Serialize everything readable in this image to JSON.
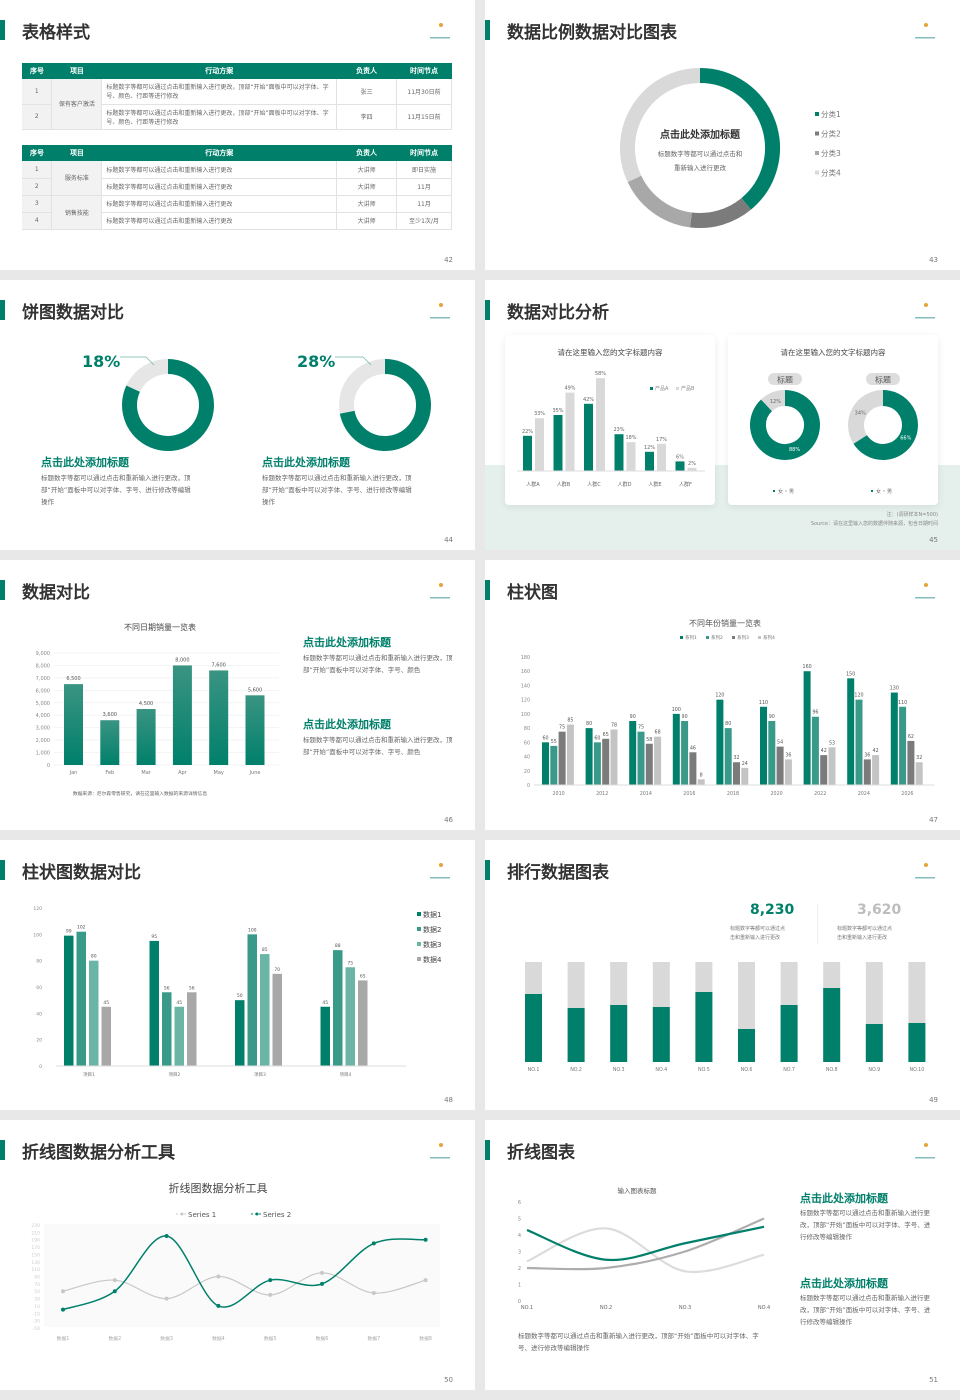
{
  "colors": {
    "accent": "#00806b",
    "accent2": "#3a9a8a",
    "accent3": "#6bb5a6",
    "gray_dark": "#7b7b7b",
    "gray_mid": "#a8a8a8",
    "gray_light": "#d9d9d9"
  },
  "logo": {
    "icon": "crescent-logo-icon"
  },
  "slides": [
    {
      "title": "表格样式",
      "page": "42",
      "table1": {
        "headers": [
          "序号",
          "项目",
          "行动方案",
          "负责人",
          "时间节点"
        ],
        "group": "保有客户激活",
        "rows": [
          {
            "no": "1",
            "plan": "标题数字等都可以通过点击和重新输入进行更改，顶部“开始”面板中可以对字体、字号、颜色、行距等进行修改",
            "owner": "张三",
            "time": "11月30日前"
          },
          {
            "no": "2",
            "plan": "标题数字等都可以通过点击和重新输入进行更改，顶部“开始”面板中可以对字体、字号、颜色、行距等进行修改",
            "owner": "李四",
            "time": "11月15日前"
          }
        ]
      },
      "table2": {
        "headers": [
          "序号",
          "项目",
          "行动方案",
          "负责人",
          "时间节点"
        ],
        "groups": [
          "服务标准",
          "销售技能"
        ],
        "rows": [
          {
            "no": "1",
            "plan": "标题数字等都可以通过点击和重新输入进行更改",
            "owner": "大讲师",
            "time": "即日实施"
          },
          {
            "no": "2",
            "plan": "标题数字等都可以通过点击和重新输入进行更改",
            "owner": "大讲师",
            "time": "11月"
          },
          {
            "no": "3",
            "plan": "标题数字等都可以通过点击和重新输入进行更改",
            "owner": "大讲师",
            "time": "11月"
          },
          {
            "no": "4",
            "plan": "标题数字等都可以通过点击和重新输入进行更改",
            "owner": "大讲师",
            "time": "至少1次/月"
          }
        ]
      }
    },
    {
      "title": "数据比例数据对比图表",
      "page": "43",
      "center_title": "点击此处添加标题",
      "center_text1": "标题数字等都可以通过点击和",
      "center_text2": "重新输入进行更改"
    },
    {
      "title": "饼图数据对比",
      "page": "44",
      "items": [
        {
          "pct_label": "18%",
          "heading": "点击此处添加标题",
          "text": "标题数字等都可以通过点击和重新输入进行更改，顶部“开始”面板中可以对字体、字号、进行修改等编辑操作"
        },
        {
          "pct_label": "28%",
          "heading": "点击此处添加标题",
          "text": "标题数字等都可以通过点击和重新输入进行更改，顶部“开始”面板中可以对字体、字号、进行修改等编辑操作"
        }
      ]
    },
    {
      "title": "数据对比分析",
      "page": "45",
      "card1_title": "请在这里输入您的文字标题内容",
      "card2_title": "请在这里输入您的文字标题内容",
      "pill1": "标题",
      "pill2": "标题",
      "note": "注：(调研样本N=500)",
      "source": "Source：请在这里输入您的数据伴随来源，包含日期时间"
    },
    {
      "title": "数据对比",
      "page": "46",
      "source": "数据来源：尼尔森零售研究，请在这里输入数据的来源详情信息",
      "blocks": [
        {
          "heading": "点击此处添加标题",
          "text": "标题数字等都可以通过点击和重新输入进行更改，顶部“开始”面板中可以对字体、字号、颜色"
        },
        {
          "heading": "点击此处添加标题",
          "text": "标题数字等都可以通过点击和重新输入进行更改，顶部“开始”面板中可以对字体、字号、颜色"
        }
      ]
    },
    {
      "title": "柱状图",
      "page": "47"
    },
    {
      "title": "柱状图数据对比",
      "page": "48"
    },
    {
      "title": "排行数据图表",
      "page": "49",
      "stats": [
        {
          "value": "8,230",
          "text1": "标题数字等都可以通过点",
          "text2": "击和重新输入进行更改"
        },
        {
          "value": "3,620",
          "text1": "标题数字等都可以通过点",
          "text2": "击和重新输入进行更改"
        }
      ]
    },
    {
      "title": "折线图数据分析工具",
      "page": "50"
    },
    {
      "title": "折线图表",
      "page": "51",
      "bottom_text": "标题数字等都可以通过点击和重新输入进行更改，顶部“开始”面板中可以对字体、字号、进行修改等编辑操作",
      "blocks": [
        {
          "heading": "点击此处添加标题",
          "text": "标题数字等都可以通过点击和重新输入进行更改，顶部“开始”面板中可以对字体、字号、进行修改等编辑操作"
        },
        {
          "heading": "点击此处添加标题",
          "text": "标题数字等都可以通过点击和重新输入进行更改，顶部“开始”面板中可以对字体、字号、进行修改等编辑操作"
        }
      ]
    }
  ],
  "chart_data": [
    {
      "id": "s43",
      "type": "pie",
      "donut": true,
      "categories": [
        "分类1",
        "分类2",
        "分类3",
        "分类4"
      ],
      "values": [
        39,
        13,
        16,
        32
      ],
      "colors": [
        "#00806b",
        "#7b7b7b",
        "#a8a8a8",
        "#d9d9d9"
      ],
      "legend": "right"
    },
    {
      "id": "s44a",
      "type": "pie",
      "donut": true,
      "values": [
        82,
        18
      ],
      "colors": [
        "#00806b",
        "#e6e6e6"
      ]
    },
    {
      "id": "s44b",
      "type": "pie",
      "donut": true,
      "values": [
        72,
        28
      ],
      "colors": [
        "#00806b",
        "#e6e6e6"
      ]
    },
    {
      "id": "s45bar",
      "type": "bar",
      "title": "请在这里输入您的文字标题内容",
      "categories": [
        "人群A",
        "人群B",
        "人群C",
        "人群D",
        "人群E",
        "人群F"
      ],
      "series": [
        {
          "name": "产品A",
          "values": [
            22,
            35,
            42,
            23,
            12,
            6
          ]
        },
        {
          "name": "产品B",
          "values": [
            33,
            49,
            58,
            18,
            17,
            2
          ]
        }
      ],
      "unit": "%",
      "legend": "top-right"
    },
    {
      "id": "s45d1",
      "type": "pie",
      "donut": true,
      "categories": [
        "女",
        "男"
      ],
      "values": [
        88,
        12
      ],
      "labels": [
        "88%",
        "12%"
      ]
    },
    {
      "id": "s45d2",
      "type": "pie",
      "donut": true,
      "categories": [
        "女",
        "男"
      ],
      "values": [
        66,
        34
      ],
      "labels": [
        "66%",
        "34%"
      ]
    },
    {
      "id": "s46",
      "type": "bar",
      "title": "不同日期销量一览表",
      "categories": [
        "Jan",
        "Feb",
        "Mar",
        "Apr",
        "May",
        "June"
      ],
      "values": [
        6500,
        3600,
        4500,
        8000,
        7600,
        5600
      ],
      "labels": [
        "6,500",
        "3,600",
        "4,500",
        "8,000",
        "7,600",
        "5,600"
      ],
      "ylim": [
        0,
        9000
      ],
      "yticks": [
        "0",
        "1,000",
        "2,000",
        "3,000",
        "4,000",
        "5,000",
        "6,000",
        "7,000",
        "8,000",
        "9,000"
      ],
      "grid": true
    },
    {
      "id": "s47",
      "type": "bar",
      "title": "不同年份销量一览表",
      "categories": [
        "2010",
        "2012",
        "2014",
        "2016",
        "2018",
        "2020",
        "2022",
        "2024",
        "2026"
      ],
      "series": [
        {
          "name": "系列1",
          "values": [
            60,
            80,
            90,
            100,
            120,
            110,
            160,
            150,
            130
          ]
        },
        {
          "name": "系列2",
          "values": [
            55,
            60,
            75,
            90,
            80,
            90,
            96,
            120,
            110
          ]
        },
        {
          "name": "系列3",
          "values": [
            75,
            65,
            58,
            46,
            32,
            54,
            42,
            36,
            62
          ]
        },
        {
          "name": "系列4",
          "values": [
            85,
            78,
            68,
            8,
            24,
            36,
            53,
            42,
            32
          ]
        }
      ],
      "ylim": [
        0,
        180
      ],
      "yticks": [
        "0",
        "20",
        "40",
        "60",
        "80",
        "100",
        "120",
        "140",
        "160",
        "180"
      ],
      "legend": "top"
    },
    {
      "id": "s48",
      "type": "bar",
      "categories": [
        "项目1",
        "项目2",
        "项目3",
        "项目4"
      ],
      "series": [
        {
          "name": "数据1",
          "values": [
            99,
            95,
            50,
            45
          ]
        },
        {
          "name": "数据2",
          "values": [
            102,
            56,
            100,
            88
          ]
        },
        {
          "name": "数据3",
          "values": [
            80,
            45,
            85,
            75
          ]
        },
        {
          "name": "数据4",
          "values": [
            45,
            56,
            70,
            65
          ]
        }
      ],
      "ylim": [
        0,
        120
      ],
      "yticks": [
        "0",
        "20",
        "40",
        "60",
        "80",
        "100",
        "120"
      ],
      "legend": "right"
    },
    {
      "id": "s49",
      "type": "bar",
      "stacked": true,
      "categories": [
        "NO.1",
        "NO.2",
        "NO.3",
        "NO.4",
        "NO.5",
        "NO.6",
        "NO.7",
        "NO.8",
        "NO.9",
        "NO.10"
      ],
      "values_pct": [
        68,
        54,
        57,
        55,
        70,
        33,
        57,
        74,
        38,
        39
      ]
    },
    {
      "id": "s50",
      "type": "line",
      "title": "折线图数据分析工具",
      "categories": [
        "数据1",
        "数据2",
        "数据3",
        "数据4",
        "数据5",
        "数据6",
        "数据7",
        "数据8"
      ],
      "series": [
        {
          "name": "Series 1",
          "values": [
            50,
            80,
            30,
            90,
            40,
            100,
            45,
            80
          ]
        },
        {
          "name": "Series 2",
          "values": [
            0,
            50,
            200,
            10,
            80,
            70,
            180,
            190
          ]
        }
      ],
      "ylim": [
        -50,
        230
      ],
      "yticks": [
        "230",
        "210",
        "190",
        "170",
        "150",
        "130",
        "110",
        "90",
        "70",
        "50",
        "30",
        "10",
        "-10",
        "-30",
        "-50"
      ],
      "legend": "top"
    },
    {
      "id": "s51",
      "type": "line",
      "title": "输入图表标题",
      "categories": [
        "NO.1",
        "NO.2",
        "NO.3",
        "NO.4"
      ],
      "series": [
        {
          "values": [
            4.3,
            2.5,
            3.5,
            4.5
          ]
        },
        {
          "values": [
            2,
            2,
            3,
            5
          ]
        },
        {
          "values": [
            2.4,
            4.4,
            1.8,
            2.8
          ]
        }
      ],
      "ylim": [
        0,
        6
      ],
      "yticks": [
        "0",
        "1",
        "2",
        "3",
        "4",
        "5",
        "6"
      ]
    }
  ]
}
